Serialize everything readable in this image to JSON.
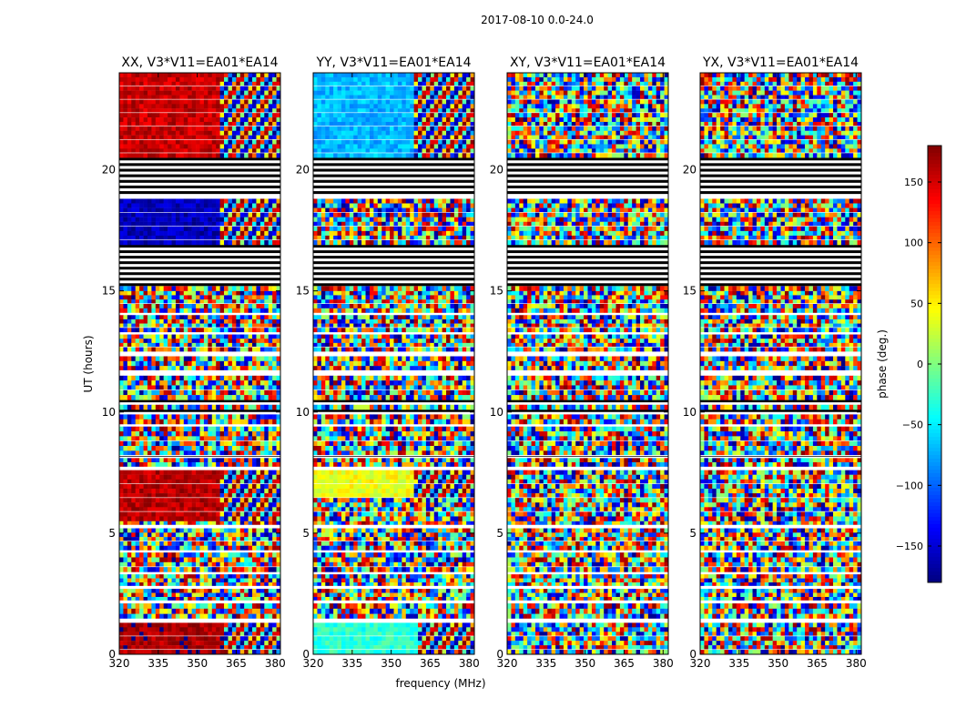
{
  "page_title": "2017-08-10 0.0-24.0",
  "xlabel": "frequency (MHz)",
  "ylabel": "UT (hours)",
  "x_ticks": [
    320,
    335,
    350,
    365,
    380
  ],
  "y_ticks": [
    0,
    5,
    10,
    15,
    20
  ],
  "xlim": [
    320,
    382
  ],
  "ylim": [
    0,
    24
  ],
  "colorbar": {
    "label": "phase (deg.)",
    "ticks": [
      150,
      100,
      50,
      0,
      -50,
      -100,
      -150
    ],
    "range": [
      -180,
      180
    ],
    "colormap": "jet"
  },
  "panels": [
    {
      "title": "XX, V3*V11=EA01*EA14"
    },
    {
      "title": "YY, V3*V11=EA01*EA14"
    },
    {
      "title": "XY, V3*V11=EA01*EA14"
    },
    {
      "title": "YX, V3*V11=EA01*EA14"
    }
  ],
  "colors": {
    "flagged": "#000000",
    "gap": "#ffffff",
    "frame": "#000000"
  },
  "chart_data": [
    {
      "type": "heatmap",
      "title": "XX, V3*V11=EA01*EA14",
      "xlabel": "frequency (MHz)",
      "ylabel": "UT (hours)",
      "xlim": [
        320,
        382
      ],
      "ylim": [
        0,
        24
      ],
      "value_range": [
        -180,
        180
      ],
      "coherent_segments": [
        {
          "ut_range": [
            0.0,
            1.3
          ],
          "freq_range": [
            320,
            361
          ],
          "phase_deg": 165
        },
        {
          "ut_range": [
            5.5,
            7.6
          ],
          "freq_range": [
            320,
            359
          ],
          "phase_deg": 160
        },
        {
          "ut_range": [
            16.9,
            18.8
          ],
          "freq_range": [
            320,
            359
          ],
          "phase_deg": -160
        },
        {
          "ut_range": [
            20.5,
            24.0
          ],
          "freq_range": [
            320,
            359
          ],
          "phase_deg": 155
        }
      ]
    },
    {
      "type": "heatmap",
      "title": "YY, V3*V11=EA01*EA14",
      "xlabel": "frequency (MHz)",
      "ylabel": "UT (hours)",
      "xlim": [
        320,
        382
      ],
      "ylim": [
        0,
        24
      ],
      "value_range": [
        -180,
        180
      ],
      "coherent_segments": [
        {
          "ut_range": [
            0.0,
            1.3
          ],
          "freq_range": [
            320,
            361
          ],
          "phase_deg": -30
        },
        {
          "ut_range": [
            6.5,
            7.6
          ],
          "freq_range": [
            320,
            359
          ],
          "phase_deg": 40
        },
        {
          "ut_range": [
            20.5,
            24.0
          ],
          "freq_range": [
            320,
            359
          ],
          "phase_deg": -70
        }
      ]
    },
    {
      "type": "heatmap",
      "title": "XY, V3*V11=EA01*EA14",
      "xlabel": "frequency (MHz)",
      "ylabel": "UT (hours)",
      "xlim": [
        320,
        382
      ],
      "ylim": [
        0,
        24
      ],
      "value_range": [
        -180,
        180
      ],
      "coherent_segments": []
    },
    {
      "type": "heatmap",
      "title": "YX, V3*V11=EA01*EA14",
      "xlabel": "frequency (MHz)",
      "ylabel": "UT (hours)",
      "xlim": [
        320,
        382
      ],
      "ylim": [
        0,
        24
      ],
      "value_range": [
        -180,
        180
      ],
      "coherent_segments": []
    }
  ]
}
